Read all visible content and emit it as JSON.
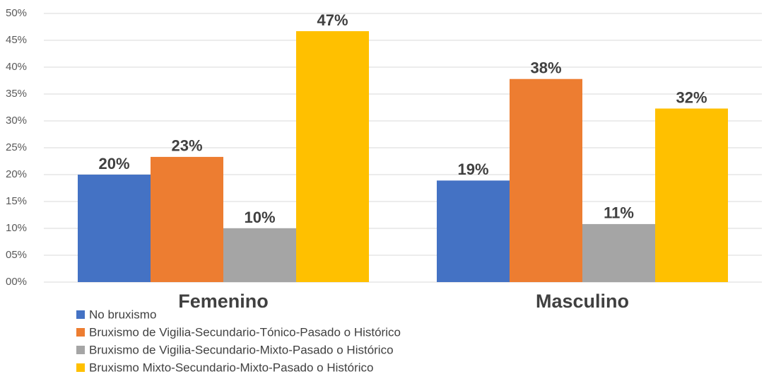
{
  "chart_data": {
    "type": "bar",
    "categories": [
      "Femenino",
      "Masculino"
    ],
    "series": [
      {
        "name": "No bruxismo",
        "color": "#4472c4",
        "values": [
          20,
          18.9
        ],
        "value_labels": [
          "20%",
          "19%"
        ]
      },
      {
        "name": "Bruxismo de Vigilia-Secundario-Tónico-Pasado o Histórico",
        "color": "#ed7d31",
        "values": [
          23.3,
          37.8
        ],
        "value_labels": [
          "23%",
          "38%"
        ]
      },
      {
        "name": "Bruxismo de Vigilia-Secundario-Mixto-Pasado o Histórico",
        "color": "#a5a5a5",
        "values": [
          10,
          10.8
        ],
        "value_labels": [
          "10%",
          "11%"
        ]
      },
      {
        "name": "Bruxismo Mixto-Secundario-Mixto-Pasado o Histórico",
        "color": "#ffc000",
        "values": [
          46.7,
          32.3
        ],
        "value_labels": [
          "47%",
          "32%"
        ]
      }
    ],
    "ylim": [
      0,
      50
    ],
    "yticks": [
      {
        "value": 0,
        "label": "00%"
      },
      {
        "value": 5,
        "label": "05%"
      },
      {
        "value": 10,
        "label": "10%"
      },
      {
        "value": 15,
        "label": "15%"
      },
      {
        "value": 20,
        "label": "20%"
      },
      {
        "value": 25,
        "label": "25%"
      },
      {
        "value": 30,
        "label": "30%"
      },
      {
        "value": 35,
        "label": "35%"
      },
      {
        "value": 40,
        "label": "40%"
      },
      {
        "value": 45,
        "label": "45%"
      },
      {
        "value": 50,
        "label": "50%"
      }
    ],
    "grid": true
  }
}
